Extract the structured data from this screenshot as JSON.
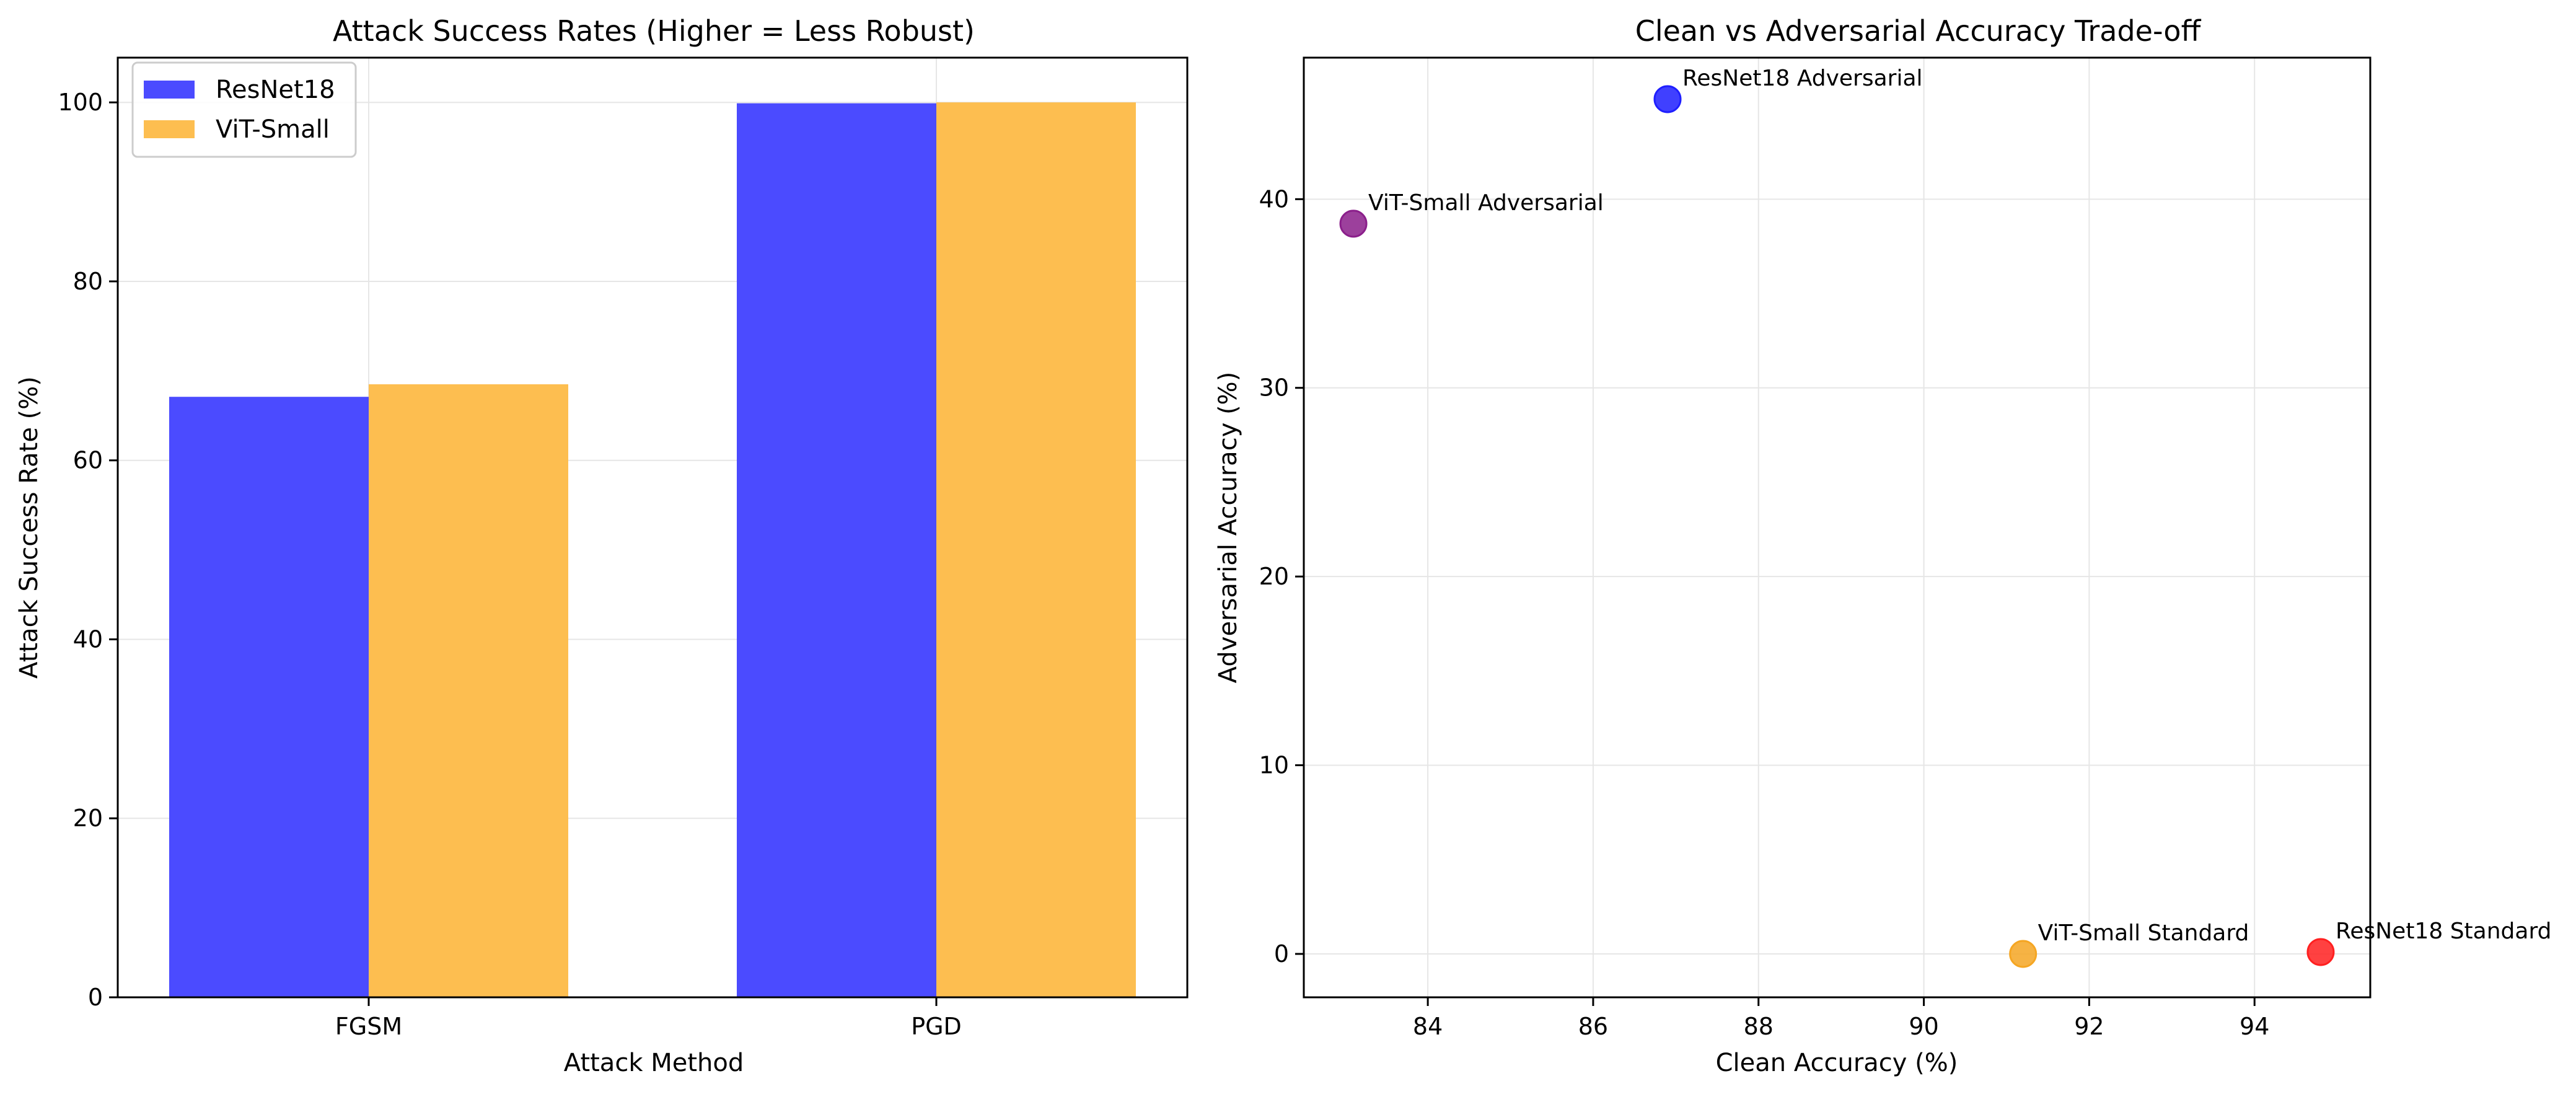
{
  "chart_data": [
    {
      "type": "bar",
      "title": "Attack Success Rates (Higher = Less Robust)",
      "xlabel": "Attack Method",
      "ylabel": "Attack Success Rate (%)",
      "categories": [
        "FGSM",
        "PGD"
      ],
      "series": [
        {
          "name": "ResNet18",
          "values": [
            67.1,
            99.9
          ],
          "color": "#4b4bff"
        },
        {
          "name": "ViT-Small",
          "values": [
            68.5,
            100.0
          ],
          "color": "#fdbe50"
        }
      ],
      "ylim": [
        0,
        105
      ],
      "yticks": [
        0,
        20,
        40,
        60,
        80,
        100
      ],
      "grid": true,
      "legend": "upper-left"
    },
    {
      "type": "scatter",
      "title": "Clean vs Adversarial Accuracy Trade-off",
      "xlabel": "Clean Accuracy (%)",
      "ylabel": "Adversarial Accuracy (%)",
      "xlim": [
        82.5,
        95.4
      ],
      "ylim": [
        -2.3,
        47.5
      ],
      "xticks": [
        84,
        86,
        88,
        90,
        92,
        94
      ],
      "yticks": [
        0,
        10,
        20,
        30,
        40
      ],
      "grid": true,
      "points": [
        {
          "label": "ResNet18 Adversarial",
          "x": 86.9,
          "y": 45.3,
          "color": "#1f1fff"
        },
        {
          "label": "ViT-Small Adversarial",
          "x": 83.1,
          "y": 38.7,
          "color": "#8b1f8b"
        },
        {
          "label": "ViT-Small Standard",
          "x": 91.2,
          "y": 0.0,
          "color": "#f5a623"
        },
        {
          "label": "ResNet18 Standard",
          "x": 94.8,
          "y": 0.1,
          "color": "#ff2020"
        }
      ]
    }
  ]
}
